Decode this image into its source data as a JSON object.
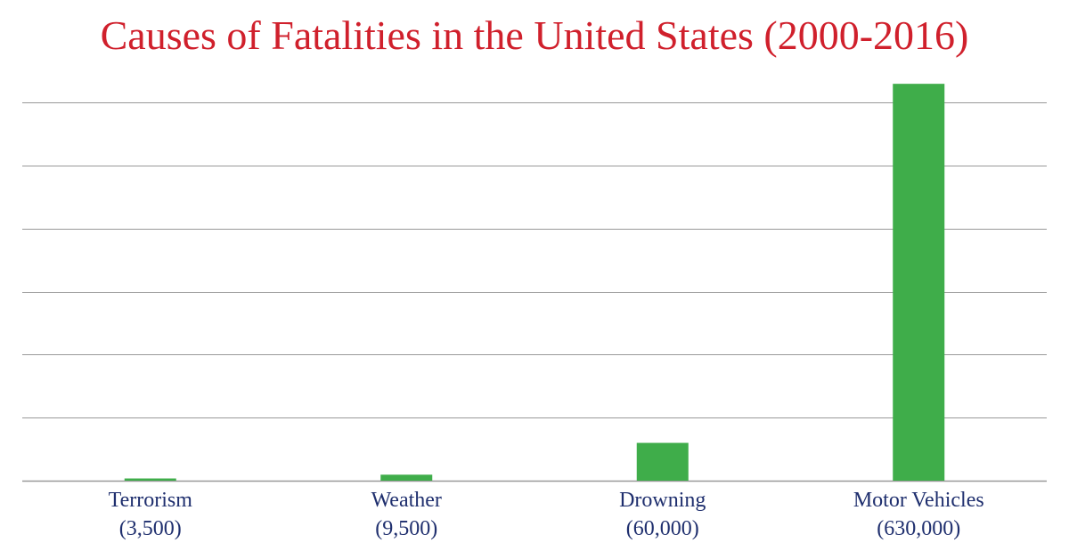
{
  "colors": {
    "title": "#d0202c",
    "bar": "#3fad4a",
    "grid": "#999999",
    "label": "#1f2f6e"
  },
  "chart_data": {
    "type": "bar",
    "title": "Causes of Fatalities in the United States (2000-2016)",
    "categories": [
      "Terrorism",
      "Weather",
      "Drowning",
      "Motor Vehicles"
    ],
    "value_labels": [
      "(3,500)",
      "(9,500)",
      "(60,000)",
      "(630,000)"
    ],
    "values": [
      3500,
      9500,
      60000,
      630000
    ],
    "xlabel": "",
    "ylabel": "",
    "ylim": [
      0,
      650000
    ],
    "gridlines": [
      0,
      100000,
      200000,
      300000,
      400000,
      500000,
      600000
    ],
    "grid": true
  }
}
